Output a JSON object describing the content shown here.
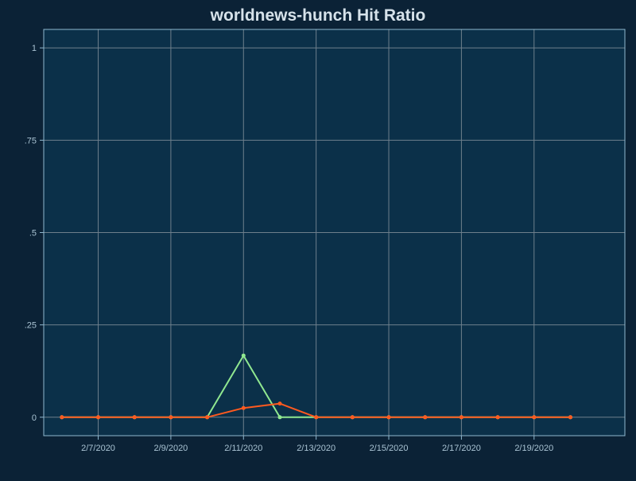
{
  "colors": {
    "page_background": "#0b2236",
    "plot_background": "#0b3049",
    "plot_border": "#8fb8cf",
    "grid": "#6e7f8c",
    "title": "#d6e2ea",
    "tick_label": "#a9c3d3",
    "series_green": "#90e890",
    "series_orange": "#ff5a1f"
  },
  "chart_data": {
    "type": "line",
    "title": "worldnews-hunch Hit Ratio",
    "xlabel": "",
    "ylabel": "",
    "x": [
      "2/6/2020",
      "2/7/2020",
      "2/8/2020",
      "2/9/2020",
      "2/10/2020",
      "2/11/2020",
      "2/12/2020",
      "2/13/2020",
      "2/14/2020",
      "2/15/2020",
      "2/16/2020",
      "2/17/2020",
      "2/18/2020",
      "2/19/2020",
      "2/20/2020"
    ],
    "x_ticks": [
      "2/7/2020",
      "2/9/2020",
      "2/11/2020",
      "2/13/2020",
      "2/15/2020",
      "2/17/2020",
      "2/19/2020"
    ],
    "x_gridlines": [
      "2/7/2020",
      "2/9/2020",
      "2/11/2020",
      "2/13/2020",
      "2/15/2020",
      "2/17/2020",
      "2/19/2020"
    ],
    "xlim": [
      "2/5/2020 12:00",
      "2/21/2020 12:00"
    ],
    "y_ticks": [
      {
        "value": 0,
        "label": "0"
      },
      {
        "value": 0.25,
        "label": ".25"
      },
      {
        "value": 0.5,
        "label": ".5"
      },
      {
        "value": 0.75,
        "label": ".75"
      },
      {
        "value": 1,
        "label": "1"
      }
    ],
    "ylim": [
      -0.05,
      1.05
    ],
    "grid": true,
    "legend": "none",
    "series": [
      {
        "color": "#90e890",
        "values": [
          0,
          0,
          0,
          0,
          0,
          0.167,
          0,
          0,
          0,
          0,
          0,
          0,
          0,
          0,
          0
        ]
      },
      {
        "color": "#ff5a1f",
        "values": [
          0,
          0,
          0,
          0,
          0,
          0.025,
          0.037,
          0,
          0,
          0,
          0,
          0,
          0,
          0,
          0
        ]
      }
    ]
  }
}
